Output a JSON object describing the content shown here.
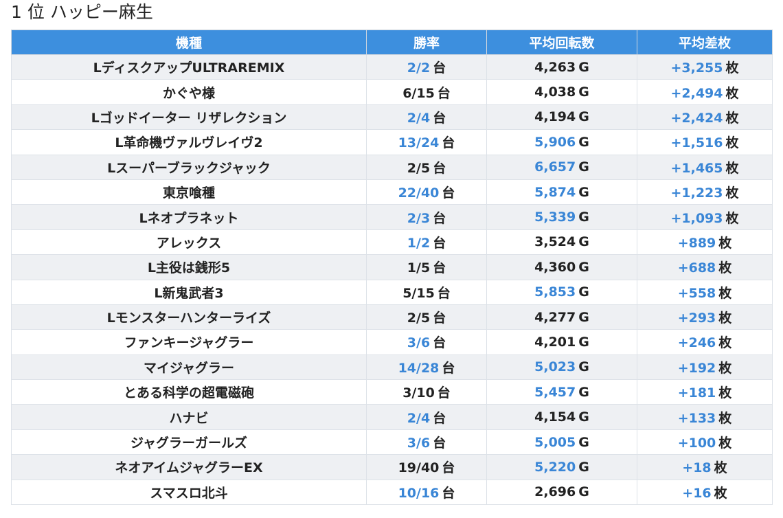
{
  "title": {
    "rank": "1 位",
    "store": "ハッピー麻生"
  },
  "table": {
    "headers": [
      "機種",
      "勝率",
      "平均回転数",
      "平均差枚"
    ],
    "unit_dai": "台",
    "unit_g": "G",
    "unit_mai": "枚",
    "highlight_color": "#3a86d6",
    "header_color": "#3d8fde",
    "rows": [
      {
        "name": "LディスクアップULTRAREMIX",
        "win": "2/2",
        "win_hl": true,
        "spins": "4,263",
        "spins_hl": false,
        "diff": "+3,255"
      },
      {
        "name": "かぐや様",
        "win": "6/15",
        "win_hl": false,
        "spins": "4,038",
        "spins_hl": false,
        "diff": "+2,494"
      },
      {
        "name": "Lゴッドイーター リザレクション",
        "win": "2/4",
        "win_hl": true,
        "spins": "4,194",
        "spins_hl": false,
        "diff": "+2,424"
      },
      {
        "name": "L革命機ヴァルヴレイヴ2",
        "win": "13/24",
        "win_hl": true,
        "spins": "5,906",
        "spins_hl": true,
        "diff": "+1,516"
      },
      {
        "name": "Lスーパーブラックジャック",
        "win": "2/5",
        "win_hl": false,
        "spins": "6,657",
        "spins_hl": true,
        "diff": "+1,465"
      },
      {
        "name": "東京喰種",
        "win": "22/40",
        "win_hl": true,
        "spins": "5,874",
        "spins_hl": true,
        "diff": "+1,223"
      },
      {
        "name": "Lネオプラネット",
        "win": "2/3",
        "win_hl": true,
        "spins": "5,339",
        "spins_hl": true,
        "diff": "+1,093"
      },
      {
        "name": "アレックス",
        "win": "1/2",
        "win_hl": true,
        "spins": "3,524",
        "spins_hl": false,
        "diff": "+889"
      },
      {
        "name": "L主役は銭形5",
        "win": "1/5",
        "win_hl": false,
        "spins": "4,360",
        "spins_hl": false,
        "diff": "+688"
      },
      {
        "name": "L新鬼武者3",
        "win": "5/15",
        "win_hl": false,
        "spins": "5,853",
        "spins_hl": true,
        "diff": "+558"
      },
      {
        "name": "Lモンスターハンターライズ",
        "win": "2/5",
        "win_hl": false,
        "spins": "4,277",
        "spins_hl": false,
        "diff": "+293"
      },
      {
        "name": "ファンキージャグラー",
        "win": "3/6",
        "win_hl": true,
        "spins": "4,201",
        "spins_hl": false,
        "diff": "+246"
      },
      {
        "name": "マイジャグラー",
        "win": "14/28",
        "win_hl": true,
        "spins": "5,023",
        "spins_hl": true,
        "diff": "+192"
      },
      {
        "name": "とある科学の超電磁砲",
        "win": "3/10",
        "win_hl": false,
        "spins": "5,457",
        "spins_hl": true,
        "diff": "+181"
      },
      {
        "name": "ハナビ",
        "win": "2/4",
        "win_hl": true,
        "spins": "4,154",
        "spins_hl": false,
        "diff": "+133"
      },
      {
        "name": "ジャグラーガールズ",
        "win": "3/6",
        "win_hl": true,
        "spins": "5,005",
        "spins_hl": true,
        "diff": "+100"
      },
      {
        "name": "ネオアイムジャグラーEX",
        "win": "19/40",
        "win_hl": false,
        "spins": "5,220",
        "spins_hl": true,
        "diff": "+18"
      },
      {
        "name": "スマスロ北斗",
        "win": "10/16",
        "win_hl": true,
        "spins": "2,696",
        "spins_hl": false,
        "diff": "+16"
      }
    ]
  }
}
